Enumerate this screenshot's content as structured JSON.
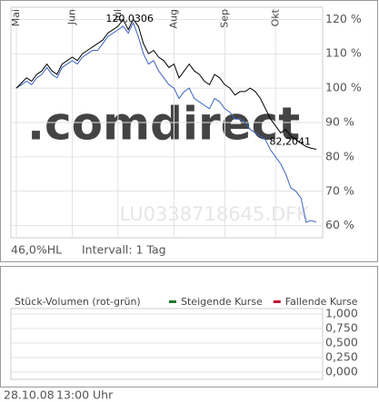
{
  "chart_data": [
    {
      "type": "line",
      "categories": [
        "Mai",
        null,
        null,
        null,
        null,
        null,
        null,
        null,
        null,
        null,
        null,
        "Jun",
        null,
        null,
        null,
        null,
        null,
        null,
        null,
        null,
        "Jul",
        null,
        null,
        null,
        null,
        null,
        null,
        null,
        null,
        null,
        null,
        "Aug",
        null,
        null,
        null,
        null,
        null,
        null,
        null,
        null,
        null,
        "Sep",
        null,
        null,
        null,
        null,
        null,
        null,
        null,
        null,
        null,
        "Okt",
        null,
        null,
        null,
        null,
        null,
        null,
        null,
        null
      ],
      "series": [
        {
          "color": "#000000",
          "values": [
            100,
            101.5,
            103,
            102,
            104,
            105,
            107,
            105,
            104,
            107,
            108,
            109,
            108,
            110,
            111,
            112,
            113,
            114,
            116,
            117,
            118,
            120,
            117,
            120.0306,
            118,
            113,
            110,
            111,
            109,
            108,
            106,
            107,
            103,
            105,
            107,
            105,
            104,
            102,
            101,
            104,
            103,
            101,
            100,
            98,
            99,
            99,
            100,
            99,
            97,
            94,
            91,
            89,
            87,
            88,
            86,
            85,
            84,
            83,
            82.5,
            82.2041
          ],
          "value_labels": [
            null,
            null,
            null,
            null,
            null,
            null,
            null,
            null,
            null,
            null,
            null,
            null,
            null,
            null,
            null,
            null,
            null,
            null,
            null,
            null,
            null,
            null,
            null,
            "120,0306",
            null,
            null,
            null,
            null,
            null,
            null,
            null,
            null,
            null,
            null,
            null,
            null,
            null,
            null,
            null,
            null,
            null,
            null,
            null,
            null,
            null,
            null,
            null,
            null,
            null,
            null,
            null,
            null,
            null,
            null,
            null,
            null,
            null,
            null,
            null,
            "82,2041"
          ]
        },
        {
          "color": "#3a64c0",
          "values": [
            100,
            101,
            102,
            101,
            103,
            104,
            106,
            104,
            103,
            106,
            107,
            108,
            107,
            109,
            110,
            111,
            111,
            113,
            115,
            116,
            117,
            118,
            116,
            119,
            115,
            110,
            107,
            108,
            105,
            103,
            101,
            100,
            97,
            99,
            100,
            97,
            96,
            95,
            94,
            97,
            96,
            94,
            93,
            91,
            91,
            90,
            88,
            87,
            86,
            85,
            82,
            80,
            78,
            75,
            71,
            70,
            68,
            61,
            61.5,
            61
          ]
        }
      ],
      "ylim": [
        57,
        123
      ],
      "yticks": [
        {
          "value": 60,
          "label": "60 %"
        },
        {
          "value": 70,
          "label": "70 %"
        },
        {
          "value": 80,
          "label": "80 %"
        },
        {
          "value": 90,
          "label": "90 %"
        },
        {
          "value": 100,
          "label": "100 %"
        },
        {
          "value": 110,
          "label": "110 %"
        },
        {
          "value": 120,
          "label": "120 %"
        }
      ],
      "grid": true,
      "watermark": ".comdirect",
      "security": "LU0338718645.DFK",
      "range_label": "46,0%HL",
      "interval": "Intervall: 1 Tag"
    },
    {
      "type": "bar",
      "title": "Stück-Volumen (rot-grün)",
      "series": [
        {
          "name": "Steigende Kurse",
          "color": "#1a7a2a"
        },
        {
          "name": "Fallende Kurse",
          "color": "#c8102e"
        }
      ],
      "ylim": [
        0,
        1
      ],
      "yticks": [
        {
          "value": 0,
          "label": "0,000"
        },
        {
          "value": 0.25,
          "label": "0,250"
        },
        {
          "value": 0.5,
          "label": "0,500"
        },
        {
          "value": 0.75,
          "label": "0,750"
        },
        {
          "value": 1,
          "label": "1,000"
        }
      ],
      "grid": true
    }
  ],
  "footer": {
    "date": "28.10.08",
    "time": "13:00 Uhr"
  }
}
